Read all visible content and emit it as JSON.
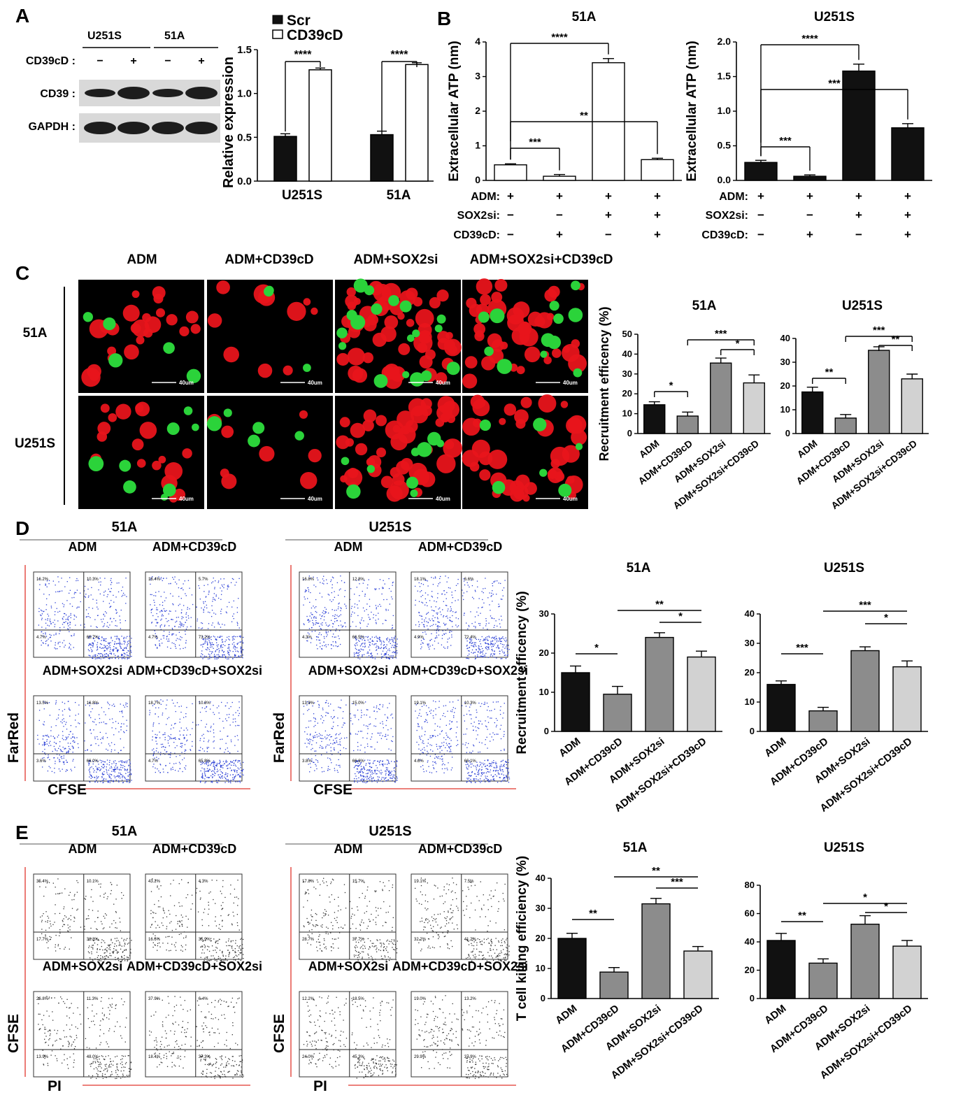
{
  "panels": {
    "A": "A",
    "B": "B",
    "C": "C",
    "D": "D",
    "E": "E"
  },
  "panelA": {
    "blot": {
      "cell_lines": [
        "U251S",
        "51A"
      ],
      "rows": [
        {
          "label": "CD39cD :"
        },
        {
          "label": "CD39 :"
        },
        {
          "label": "GAPDH :"
        }
      ],
      "signs": [
        "−",
        "+",
        "−",
        "+"
      ]
    },
    "chart_data": {
      "type": "bar",
      "categories": [
        "U251S",
        "51A"
      ],
      "series": [
        {
          "name": "Scr",
          "values": [
            0.51,
            0.53
          ]
        },
        {
          "name": "CD39cD",
          "values": [
            1.27,
            1.33
          ]
        }
      ],
      "errors": [
        [
          0.03,
          0.04
        ],
        [
          0.02,
          0.02
        ]
      ],
      "ylabel": "Relative expression",
      "ylim": [
        0,
        1.5
      ],
      "yticks": [
        "0.0",
        "0.5",
        "1.0",
        "1.5"
      ],
      "sig": [
        "****",
        "****"
      ],
      "legend": "top"
    }
  },
  "panelB": {
    "row_labels": [
      "ADM:",
      "SOX2si:",
      "CD39cD:"
    ],
    "signs": [
      [
        "+",
        "+",
        "+",
        "+"
      ],
      [
        "−",
        "−",
        "+",
        "+"
      ],
      [
        "−",
        "+",
        "−",
        "+"
      ]
    ],
    "charts": [
      {
        "type": "bar",
        "title": "51A",
        "ylabel": "Extracellular ATP (nm)",
        "ylim": [
          0,
          4
        ],
        "yticks": [
          "0",
          "1",
          "2",
          "3",
          "4"
        ],
        "values": [
          0.45,
          0.12,
          3.4,
          0.6
        ],
        "errors": [
          0.03,
          0.05,
          0.12,
          0.04
        ],
        "sig": [
          {
            "a": 0,
            "b": 1,
            "t": "***"
          },
          {
            "a": 0,
            "b": 3,
            "t": "**"
          },
          {
            "a": 0,
            "b": 2,
            "t": "****"
          }
        ]
      },
      {
        "type": "bar",
        "title": "U251S",
        "ylabel": "Extracellular ATP (nm)",
        "ylim": [
          0,
          2
        ],
        "yticks": [
          "0.0",
          "0.5",
          "1.0",
          "1.5",
          "2.0"
        ],
        "values": [
          0.26,
          0.06,
          1.58,
          0.76
        ],
        "errors": [
          0.03,
          0.02,
          0.1,
          0.06
        ],
        "sig": [
          {
            "a": 0,
            "b": 1,
            "t": "***"
          },
          {
            "a": 0,
            "b": 3,
            "t": "***"
          },
          {
            "a": 0,
            "b": 2,
            "t": "****"
          }
        ]
      }
    ]
  },
  "panelC": {
    "columns": [
      "ADM",
      "ADM+CD39cD",
      "ADM+SOX2si",
      "ADM+SOX2si+CD39cD"
    ],
    "rows": [
      "51A",
      "U251S"
    ],
    "scale": "40um",
    "categories": [
      "ADM",
      "ADM+CD39cD",
      "ADM+SOX2si",
      "ADM+SOX2si+CD39cD"
    ],
    "charts": [
      {
        "type": "bar",
        "title": "51A",
        "ylabel": "Recruitment efficency (%)",
        "ylim": [
          0,
          50
        ],
        "yticks": [
          "0",
          "10",
          "20",
          "30",
          "40",
          "50"
        ],
        "values": [
          14.5,
          8.8,
          35.5,
          25.5
        ],
        "errors": [
          1.5,
          2.0,
          2.5,
          4.0
        ],
        "sig": [
          {
            "a": 0,
            "b": 1,
            "t": "*"
          },
          {
            "a": 2,
            "b": 3,
            "t": "*"
          },
          {
            "a": 1,
            "b": 3,
            "t": "***"
          }
        ]
      },
      {
        "type": "bar",
        "title": "U251S",
        "ylim": [
          0,
          40
        ],
        "yticks": [
          "0",
          "10",
          "20",
          "30",
          "40"
        ],
        "values": [
          17.5,
          6.5,
          35,
          23
        ],
        "errors": [
          2.0,
          1.5,
          1.5,
          2.0
        ],
        "sig": [
          {
            "a": 0,
            "b": 1,
            "t": "**"
          },
          {
            "a": 2,
            "b": 3,
            "t": "**"
          },
          {
            "a": 1,
            "b": 3,
            "t": "***"
          }
        ]
      }
    ]
  },
  "panelD": {
    "groups": [
      {
        "title": "51A",
        "plots": [
          {
            "label": "ADM",
            "q": [
              "16.2%",
              "10.3%",
              "4.7%",
              "68.7%"
            ]
          },
          {
            "label": "ADM+CD39cD",
            "q": [
              "16.4%",
              "5.7%",
              "4.7%",
              "73.2%"
            ]
          },
          {
            "label": "ADM+SOX2si",
            "q": [
              "13.5%",
              "16.8%",
              "3.6%",
              "66.0%"
            ]
          },
          {
            "label": "ADM+CD39cD+SOX2si",
            "q": [
              "18.7%",
              "10.8%",
              "4.7%",
              "65.8%"
            ]
          }
        ]
      },
      {
        "title": "U251S",
        "plots": [
          {
            "label": "ADM",
            "q": [
              "16.8%",
              "12.8%",
              "4.3%",
              "66.5%"
            ]
          },
          {
            "label": "ADM+CD39cD",
            "q": [
              "18.1%",
              "6.6%",
              "4.9%",
              "72.4%"
            ]
          },
          {
            "label": "ADM+SOX2si",
            "q": [
              "13.9%",
              "15.0%",
              "3.8%",
              "66.6%"
            ]
          },
          {
            "label": "ADM+CD39cD+SOX2si",
            "q": [
              "19.1%",
              "10.3%",
              "4.6%",
              "66.1%"
            ]
          }
        ]
      }
    ],
    "yaxis": "FarRed",
    "xaxis": "CFSE",
    "categories": [
      "ADM",
      "ADM+CD39cD",
      "ADM+SOX2si",
      "ADM+SOX2si+CD39cD"
    ],
    "charts": [
      {
        "type": "bar",
        "title": "51A",
        "ylabel": "Recruitment efficency (%)",
        "ylim": [
          0,
          30
        ],
        "yticks": [
          "0",
          "10",
          "20",
          "30"
        ],
        "values": [
          15,
          9.5,
          24,
          19
        ],
        "errors": [
          1.7,
          2.0,
          1.2,
          1.5
        ],
        "sig": [
          {
            "a": 0,
            "b": 1,
            "t": "*"
          },
          {
            "a": 2,
            "b": 3,
            "t": "*"
          },
          {
            "a": 1,
            "b": 3,
            "t": "**"
          }
        ]
      },
      {
        "type": "bar",
        "title": "U251S",
        "ylim": [
          0,
          40
        ],
        "yticks": [
          "0",
          "10",
          "20",
          "30",
          "40"
        ],
        "values": [
          16,
          7,
          27.5,
          22
        ],
        "errors": [
          1.2,
          1.2,
          1.3,
          2.0
        ],
        "sig": [
          {
            "a": 0,
            "b": 1,
            "t": "***"
          },
          {
            "a": 2,
            "b": 3,
            "t": "*"
          },
          {
            "a": 1,
            "b": 3,
            "t": "***"
          }
        ]
      }
    ]
  },
  "panelE": {
    "groups": [
      {
        "title": "51A",
        "plots": [
          {
            "label": "ADM",
            "q": [
              "35.4%",
              "10.1%",
              "17.7%",
              "36.8%"
            ]
          },
          {
            "label": "ADM+CD39cD",
            "q": [
              "43.2%",
              "4.3%",
              "16.6%",
              "35.9%"
            ]
          },
          {
            "label": "ADM+SOX2si",
            "q": [
              "26.8%",
              "11.3%",
              "13.9%",
              "48.0%"
            ]
          },
          {
            "label": "ADM+CD39cD+SOX2si",
            "q": [
              "37.9%",
              "6.4%",
              "18.4%",
              "37.3%"
            ]
          }
        ]
      },
      {
        "title": "U251S",
        "plots": [
          {
            "label": "ADM",
            "q": [
              "17.8%",
              "15.7%",
              "28.7%",
              "37.7%"
            ]
          },
          {
            "label": "ADM+CD39cD",
            "q": [
              "19.1%",
              "7.5%",
              "32.2%",
              "41.2%"
            ]
          },
          {
            "label": "ADM+SOX2si",
            "q": [
              "12.2%",
              "18.5%",
              "24.0%",
              "45.3%"
            ]
          },
          {
            "label": "ADM+CD39cD+SOX2si",
            "q": [
              "19.0%",
              "13.2%",
              "29.9%",
              "37.9%"
            ]
          }
        ]
      }
    ],
    "yaxis": "CFSE",
    "xaxis": "PI",
    "categories": [
      "ADM",
      "ADM+CD39cD",
      "ADM+SOX2si",
      "ADM+SOX2si+CD39cD"
    ],
    "charts": [
      {
        "type": "bar",
        "title": "51A",
        "ylabel": "T cell killing efficiency (%)",
        "ylim": [
          0,
          40
        ],
        "yticks": [
          "0",
          "10",
          "20",
          "30",
          "40"
        ],
        "values": [
          20,
          8.8,
          31.5,
          15.8
        ],
        "errors": [
          1.7,
          1.5,
          1.8,
          1.5
        ],
        "sig": [
          {
            "a": 0,
            "b": 1,
            "t": "**"
          },
          {
            "a": 2,
            "b": 3,
            "t": "***"
          },
          {
            "a": 1,
            "b": 3,
            "t": "**"
          }
        ]
      },
      {
        "type": "bar",
        "title": "U251S",
        "ylim": [
          0,
          80
        ],
        "yticks": [
          "0",
          "20",
          "40",
          "60",
          "80"
        ],
        "values": [
          41,
          25,
          52.5,
          37
        ],
        "errors": [
          5,
          3,
          6,
          4
        ],
        "sig": [
          {
            "a": 0,
            "b": 1,
            "t": "**"
          },
          {
            "a": 2,
            "b": 3,
            "t": "*"
          },
          {
            "a": 1,
            "b": 3,
            "t": "*"
          }
        ]
      }
    ]
  },
  "colors": {
    "black": "#111111",
    "grey": "#8c8c8c",
    "lightgrey": "#d2d2d2",
    "white": "#ffffff",
    "red_cell": "#e8141b",
    "green_cell": "#2bd33a",
    "dot": "#2a3fd6",
    "axis_red": "#e0362c"
  }
}
